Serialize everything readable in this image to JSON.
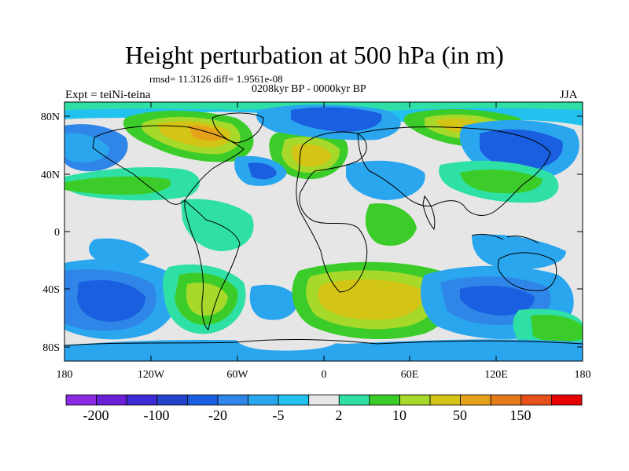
{
  "title": "Height perturbation at 500 hPa (in m)",
  "subtitle_stats": "rmsd= 11.3126 diff= 1.9561e-08",
  "subtitle_period": "0208kyr BP - 0000kyr BP",
  "experiment_label": "Expt = teiNi-teina",
  "season_label": "JJA",
  "map": {
    "projection": "cylindrical equidistant",
    "lon_range": [
      -180,
      180
    ],
    "lat_range": [
      -90,
      90
    ],
    "x_tick_labels": [
      "180",
      "120W",
      "60W",
      "0",
      "60E",
      "120E",
      "180"
    ],
    "y_tick_labels": [
      "80N",
      "40N",
      "0",
      "40S",
      "80S"
    ]
  },
  "colorbar": {
    "colors": [
      "#8a2be2",
      "#6a1fd8",
      "#3f2ad6",
      "#2244cc",
      "#1a5fe0",
      "#2f86e8",
      "#2aa6ee",
      "#22c2ee",
      "#e6e6e6",
      "#2fe0a6",
      "#3ccc2a",
      "#a6d92a",
      "#d4c416",
      "#e6a21a",
      "#e67a1a",
      "#e6501a",
      "#e60000"
    ],
    "labels": [
      "-200",
      "-100",
      "-20",
      "-5",
      "2",
      "10",
      "50",
      "150"
    ]
  }
}
